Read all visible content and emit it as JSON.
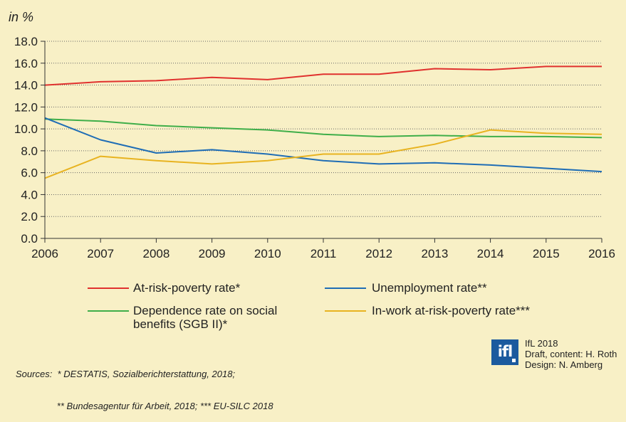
{
  "chart_data": {
    "type": "line",
    "ylabel": "in %",
    "ylim": [
      0,
      18
    ],
    "yticks": [
      "0.0",
      "2.0",
      "4.0",
      "6.0",
      "8.0",
      "10.0",
      "12.0",
      "14.0",
      "16.0",
      "18.0"
    ],
    "x": [
      "2006",
      "2007",
      "2008",
      "2009",
      "2010",
      "2011",
      "2012",
      "2013",
      "2014",
      "2015",
      "2016"
    ],
    "grid": "horizontal-dotted",
    "series": [
      {
        "name": "At-risk-poverty rate*",
        "color": "#e0312e",
        "values": [
          14.0,
          14.3,
          14.4,
          14.7,
          14.5,
          15.0,
          15.0,
          15.5,
          15.4,
          15.7,
          15.7
        ]
      },
      {
        "name": "Dependence rate on social benefits (SGB II)*",
        "color": "#3fae49",
        "values": [
          10.9,
          10.7,
          10.3,
          10.1,
          9.9,
          9.5,
          9.3,
          9.4,
          9.3,
          9.3,
          9.2
        ]
      },
      {
        "name": "Unemployment rate**",
        "color": "#1f6db5",
        "values": [
          11.0,
          9.0,
          7.8,
          8.1,
          7.7,
          7.1,
          6.8,
          6.9,
          6.7,
          6.4,
          6.1
        ]
      },
      {
        "name": "In-work at-risk-poverty rate***",
        "color": "#e8b320",
        "values": [
          5.5,
          7.5,
          7.1,
          6.8,
          7.1,
          7.7,
          7.7,
          8.6,
          9.9,
          9.6,
          9.5
        ]
      }
    ]
  },
  "legend": {
    "at_risk": "At-risk-poverty rate*",
    "dependence_line1": "Dependence rate on social",
    "dependence_line2": "benefits (SGB II)*",
    "unemployment": "Unemployment rate**",
    "in_work": "In-work at-risk-poverty rate***"
  },
  "sources": {
    "line1": "Sources:  * DESTATIS, Sozialberichterstattung, 2018;",
    "line2": "                ** Bundesagentur für Arbeit, 2018; *** EU-SILC 2018"
  },
  "credits": {
    "logo_text": "ifl",
    "line1": "IfL 2018",
    "line2": "Draft, content: H. Roth",
    "line3": "Design: N. Amberg"
  },
  "colors": {
    "background": "#f8f0c6",
    "axis": "#333333",
    "grid": "#666666"
  }
}
